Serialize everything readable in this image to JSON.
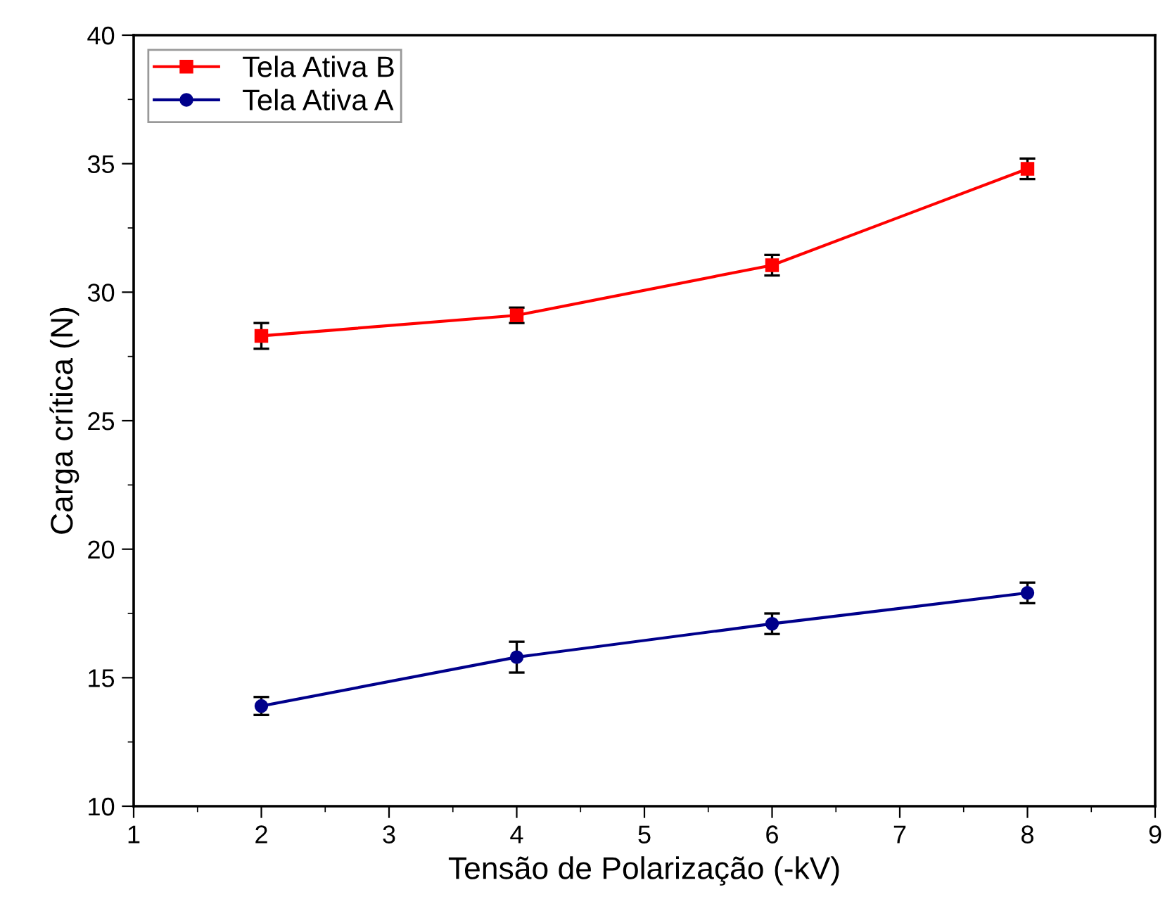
{
  "chart_data": {
    "type": "line",
    "xlabel": "Tensão de Polarização (-kV)",
    "ylabel": "Carga crítica (N)",
    "x": [
      2,
      4,
      6,
      8
    ],
    "series": [
      {
        "name": "Tela Ativa B",
        "color": "#ff0000",
        "marker": "square",
        "values": [
          28.3,
          29.1,
          31.05,
          34.8
        ],
        "errors": [
          0.5,
          0.3,
          0.4,
          0.4
        ]
      },
      {
        "name": "Tela Ativa A",
        "color": "#00008b",
        "marker": "circle",
        "values": [
          13.9,
          15.8,
          17.1,
          18.3
        ],
        "errors": [
          0.35,
          0.6,
          0.4,
          0.4
        ]
      }
    ],
    "xlim": [
      1,
      9
    ],
    "xticks": [
      1,
      2,
      3,
      4,
      5,
      6,
      7,
      8,
      9
    ],
    "ylim": [
      10,
      40
    ],
    "yticks": [
      10,
      15,
      20,
      25,
      30,
      35,
      40
    ],
    "grid": false,
    "legend": "top left",
    "line_style": "solid"
  }
}
